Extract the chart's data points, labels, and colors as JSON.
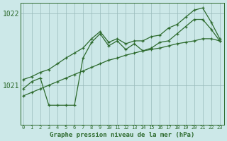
{
  "background_color": "#cce8e8",
  "grid_color": "#99bbbb",
  "line_color": "#2d6a2d",
  "title": "Graphe pression niveau de la mer (hPa)",
  "x_ticks": [
    0,
    1,
    2,
    3,
    4,
    5,
    6,
    7,
    8,
    9,
    10,
    11,
    12,
    13,
    14,
    15,
    16,
    17,
    18,
    19,
    20,
    21,
    22,
    23
  ],
  "ylim": [
    1020.45,
    1022.15
  ],
  "xlim": [
    -0.3,
    23.5
  ],
  "y_ticks": [
    1021.0,
    1022.0
  ],
  "x_main": [
    0,
    1,
    2,
    3,
    4,
    5,
    6,
    7,
    8,
    9,
    10,
    11,
    12,
    13,
    14,
    15,
    16,
    17,
    18,
    19,
    20,
    21,
    22,
    23
  ],
  "y_main": [
    1020.95,
    1021.05,
    1021.1,
    1020.72,
    1020.72,
    1020.72,
    1020.72,
    1021.38,
    1021.6,
    1021.72,
    1021.55,
    1021.62,
    1021.5,
    1021.58,
    1021.48,
    1021.52,
    1021.6,
    1021.62,
    1021.72,
    1021.82,
    1021.92,
    1021.92,
    1021.78,
    1021.62
  ],
  "x_upper": [
    0,
    1,
    2,
    3,
    4,
    5,
    6,
    7,
    8,
    9,
    10,
    11,
    12,
    13,
    14,
    15,
    16,
    17,
    18,
    19,
    20,
    21,
    22,
    23
  ],
  "y_upper": [
    1021.08,
    1021.12,
    1021.18,
    1021.22,
    1021.3,
    1021.38,
    1021.45,
    1021.52,
    1021.65,
    1021.75,
    1021.6,
    1021.65,
    1021.58,
    1021.62,
    1021.62,
    1021.68,
    1021.7,
    1021.8,
    1021.85,
    1021.95,
    1022.05,
    1022.08,
    1021.88,
    1021.65
  ],
  "x_lower": [
    0,
    1,
    2,
    3,
    4,
    5,
    6,
    7,
    8,
    9,
    10,
    11,
    12,
    13,
    14,
    15,
    16,
    17,
    18,
    19,
    20,
    21,
    22,
    23
  ],
  "y_lower": [
    1020.85,
    1020.9,
    1020.95,
    1021.0,
    1021.05,
    1021.1,
    1021.15,
    1021.2,
    1021.25,
    1021.3,
    1021.35,
    1021.38,
    1021.42,
    1021.45,
    1021.48,
    1021.5,
    1021.52,
    1021.55,
    1021.58,
    1021.6,
    1021.62,
    1021.65,
    1021.65,
    1021.62
  ]
}
